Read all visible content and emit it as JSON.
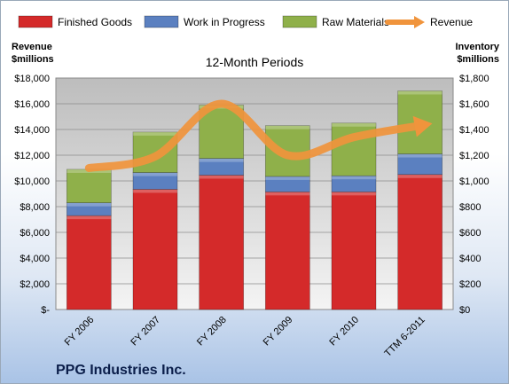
{
  "chart_data": {
    "type": "bar",
    "stacked": true,
    "subtitle": "12-Month Periods",
    "company": "PPG Industries Inc.",
    "categories": [
      "FY 2006",
      "FY 2007",
      "FY 2008",
      "FY 2009",
      "FY 2010",
      "TTM 6-2011"
    ],
    "series": [
      {
        "name": "Finished Goods",
        "axis": "right",
        "color": "#d42a2a",
        "values": [
          730,
          935,
          1045,
          915,
          915,
          1050
        ]
      },
      {
        "name": "Work in Progress",
        "axis": "right",
        "color": "#5b80c0",
        "values": [
          100,
          130,
          130,
          120,
          125,
          160
        ]
      },
      {
        "name": "Raw Materials",
        "axis": "right",
        "color": "#8fb04a",
        "values": [
          260,
          315,
          415,
          395,
          410,
          490
        ]
      },
      {
        "name": "Revenue",
        "type": "line",
        "axis": "left",
        "color": "#f0943c",
        "values": [
          11000,
          11900,
          16000,
          12000,
          13400,
          14300
        ]
      }
    ],
    "y_left": {
      "label_line1": "Revenue",
      "label_line2": "$millions",
      "ylim": [
        0,
        18000
      ],
      "ticks": [
        "$-",
        "$2,000",
        "$4,000",
        "$6,000",
        "$8,000",
        "$10,000",
        "$12,000",
        "$14,000",
        "$16,000",
        "$18,000"
      ]
    },
    "y_right": {
      "label_line1": "Inventory",
      "label_line2": "$millions",
      "ylim": [
        0,
        1800
      ],
      "ticks": [
        "$0",
        "$200",
        "$400",
        "$600",
        "$800",
        "$1,000",
        "$1,200",
        "$1,400",
        "$1,600",
        "$1,800"
      ]
    },
    "grid": true,
    "legend_position": "top"
  }
}
